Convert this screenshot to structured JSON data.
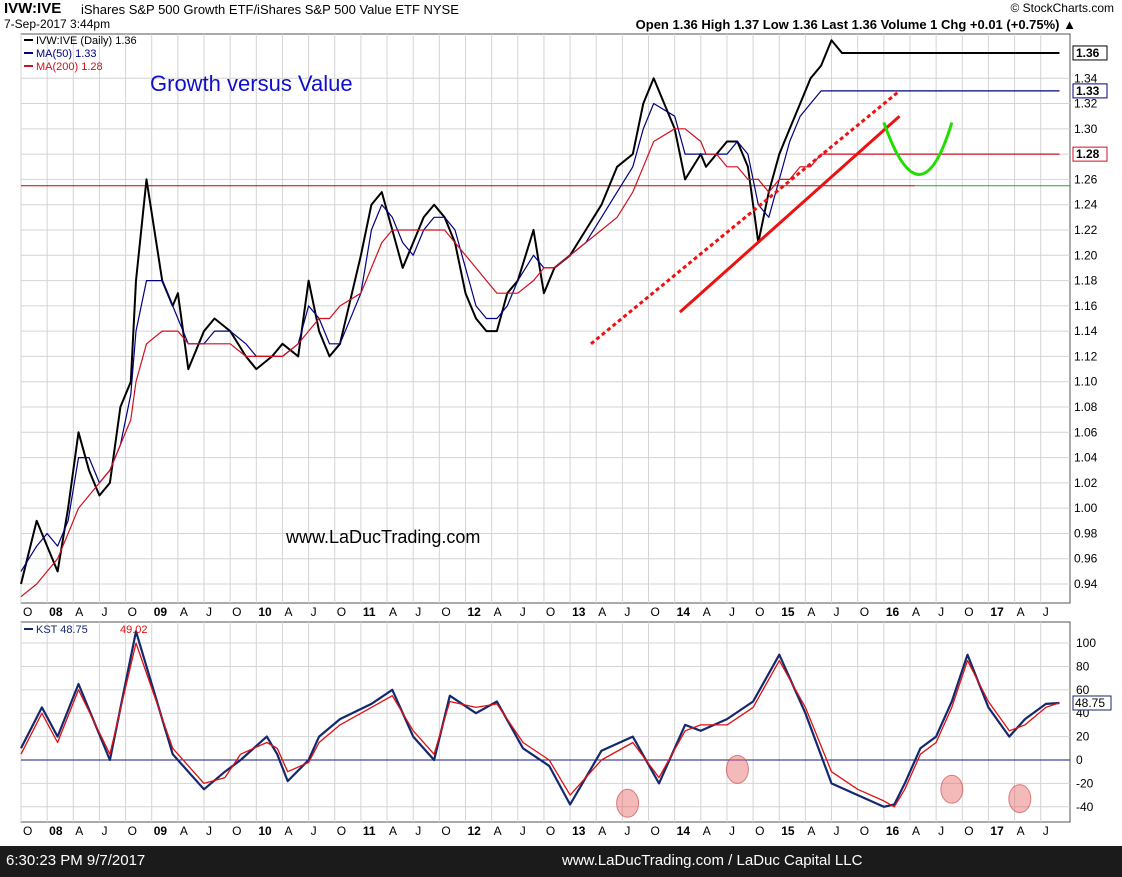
{
  "header": {
    "ticker": "IVW:IVE",
    "name": "iShares S&P 500 Growth ETF/iShares S&P 500 Value ETF NYSE",
    "date": "7-Sep-2017 3:44pm",
    "brand": "© StockCharts.com",
    "quote": "Open 1.36 High 1.37 Low 1.36 Last 1.36 Volume 1 Chg +0.01 (+0.75%) ▲"
  },
  "footer": {
    "left": "6:30:23 PM 9/7/2017",
    "center": "www.LaDucTrading.com / LaDuc Capital LLC"
  },
  "colors": {
    "price": "#000000",
    "ma50": "#000080",
    "ma200": "#d01020",
    "kst": "#14286e",
    "signal": "#e01010",
    "trend": "#ee1111",
    "cup": "#22dd00",
    "title": "#1010cc",
    "grid": "#d4d4d4"
  },
  "chart_data": [
    {
      "type": "line",
      "title": "Growth versus Value",
      "watermark": "www.LaDucTrading.com",
      "legend": [
        "IVW:IVE (Daily) 1.36",
        "MA(50) 1.33",
        "MA(200) 1.28"
      ],
      "legend_position": "top-left",
      "grid": true,
      "ylim": [
        0.925,
        1.375
      ],
      "yticks": [
        0.94,
        0.96,
        0.98,
        1.0,
        1.02,
        1.04,
        1.06,
        1.08,
        1.1,
        1.12,
        1.14,
        1.16,
        1.18,
        1.2,
        1.22,
        1.24,
        1.26,
        1.28,
        1.3,
        1.32,
        1.34
      ],
      "xticks": [
        "O",
        "08",
        "A",
        "J",
        "O",
        "09",
        "A",
        "J",
        "O",
        "10",
        "A",
        "J",
        "O",
        "11",
        "A",
        "J",
        "O",
        "12",
        "A",
        "J",
        "O",
        "13",
        "A",
        "J",
        "O",
        "14",
        "A",
        "J",
        "O",
        "15",
        "A",
        "J",
        "O",
        "16",
        "A",
        "J",
        "O",
        "17",
        "A",
        "J"
      ],
      "last_value_labels": [
        {
          "text": "1.36",
          "value": 1.36
        },
        {
          "text": "1.33",
          "value": 1.33
        },
        {
          "text": "1.28",
          "value": 1.28
        }
      ],
      "x": [
        2007.75,
        2007.9,
        2008.0,
        2008.1,
        2008.2,
        2008.3,
        2008.4,
        2008.5,
        2008.6,
        2008.7,
        2008.8,
        2008.85,
        2008.95,
        2009.1,
        2009.2,
        2009.25,
        2009.35,
        2009.5,
        2009.6,
        2009.75,
        2009.9,
        2010.0,
        2010.15,
        2010.25,
        2010.4,
        2010.5,
        2010.6,
        2010.7,
        2010.8,
        2011.0,
        2011.1,
        2011.2,
        2011.3,
        2011.4,
        2011.5,
        2011.6,
        2011.7,
        2011.8,
        2011.9,
        2012.0,
        2012.1,
        2012.2,
        2012.3,
        2012.4,
        2012.5,
        2012.65,
        2012.75,
        2012.85,
        2013.0,
        2013.15,
        2013.3,
        2013.45,
        2013.6,
        2013.7,
        2013.8,
        2014.0,
        2014.1,
        2014.25,
        2014.3,
        2014.4,
        2014.5,
        2014.6,
        2014.7,
        2014.8,
        2014.9,
        2015.0,
        2015.1,
        2015.2,
        2015.3,
        2015.4,
        2015.5,
        2015.6,
        2015.7,
        2015.8,
        2015.9,
        2016.0,
        2016.05,
        2016.15,
        2016.25,
        2016.35,
        2016.45,
        2016.55,
        2016.65,
        2016.75,
        2016.8,
        2016.85,
        2016.92,
        2017.0,
        2017.1,
        2017.2,
        2017.3,
        2017.4,
        2017.5,
        2017.6,
        2017.68
      ],
      "series": [
        {
          "name": "IVW:IVE (Daily) 1.36",
          "values": [
            0.94,
            0.99,
            0.97,
            0.95,
            1.0,
            1.06,
            1.03,
            1.01,
            1.02,
            1.08,
            1.1,
            1.18,
            1.26,
            1.18,
            1.16,
            1.17,
            1.11,
            1.14,
            1.15,
            1.14,
            1.12,
            1.11,
            1.12,
            1.13,
            1.12,
            1.18,
            1.14,
            1.12,
            1.13,
            1.2,
            1.24,
            1.25,
            1.22,
            1.19,
            1.21,
            1.23,
            1.24,
            1.23,
            1.21,
            1.17,
            1.15,
            1.14,
            1.14,
            1.17,
            1.18,
            1.22,
            1.17,
            1.19,
            1.2,
            1.22,
            1.24,
            1.27,
            1.28,
            1.32,
            1.34,
            1.3,
            1.26,
            1.28,
            1.27,
            1.28,
            1.29,
            1.29,
            1.27,
            1.21,
            1.25,
            1.28,
            1.3,
            1.32,
            1.34,
            1.35,
            1.37,
            1.36,
            1.36,
            1.36,
            1.36,
            1.36,
            1.36,
            1.36,
            1.36,
            1.36,
            1.36,
            1.36,
            1.36,
            1.36,
            1.36,
            1.36,
            1.36,
            1.36,
            1.36,
            1.36,
            1.36,
            1.36,
            1.36,
            1.36,
            1.36
          ]
        },
        {
          "name": "MA(50) 1.33",
          "values": [
            0.95,
            0.97,
            0.98,
            0.97,
            0.99,
            1.04,
            1.04,
            1.02,
            1.03,
            1.05,
            1.09,
            1.14,
            1.18,
            1.18,
            1.16,
            1.15,
            1.13,
            1.13,
            1.14,
            1.14,
            1.13,
            1.12,
            1.12,
            1.12,
            1.13,
            1.16,
            1.15,
            1.13,
            1.13,
            1.17,
            1.22,
            1.24,
            1.23,
            1.21,
            1.2,
            1.22,
            1.23,
            1.23,
            1.22,
            1.19,
            1.16,
            1.15,
            1.15,
            1.16,
            1.18,
            1.2,
            1.19,
            1.19,
            1.2,
            1.21,
            1.23,
            1.25,
            1.27,
            1.3,
            1.32,
            1.31,
            1.28,
            1.28,
            1.28,
            1.28,
            1.28,
            1.29,
            1.28,
            1.24,
            1.23,
            1.26,
            1.29,
            1.31,
            1.32,
            1.33,
            1.33,
            1.33,
            1.33,
            1.33,
            1.33,
            1.33,
            1.33,
            1.33,
            1.33,
            1.33,
            1.33,
            1.33,
            1.33,
            1.33,
            1.33,
            1.33,
            1.33,
            1.33,
            1.33,
            1.33,
            1.33,
            1.33,
            1.33,
            1.33,
            1.33
          ]
        },
        {
          "name": "MA(200) 1.28",
          "values": [
            0.93,
            0.94,
            0.95,
            0.96,
            0.98,
            1.0,
            1.01,
            1.02,
            1.03,
            1.05,
            1.07,
            1.1,
            1.13,
            1.14,
            1.14,
            1.14,
            1.13,
            1.13,
            1.13,
            1.13,
            1.12,
            1.12,
            1.12,
            1.12,
            1.13,
            1.14,
            1.15,
            1.15,
            1.16,
            1.17,
            1.19,
            1.21,
            1.22,
            1.22,
            1.22,
            1.22,
            1.22,
            1.22,
            1.21,
            1.2,
            1.19,
            1.18,
            1.17,
            1.17,
            1.17,
            1.18,
            1.19,
            1.19,
            1.2,
            1.21,
            1.22,
            1.23,
            1.25,
            1.27,
            1.29,
            1.3,
            1.3,
            1.29,
            1.28,
            1.28,
            1.27,
            1.27,
            1.26,
            1.26,
            1.25,
            1.26,
            1.26,
            1.27,
            1.27,
            1.28,
            1.28,
            1.28,
            1.28,
            1.28,
            1.28,
            1.28,
            1.28,
            1.28,
            1.28,
            1.28,
            1.28,
            1.28,
            1.28,
            1.28,
            1.28,
            1.28,
            1.28,
            1.28,
            1.28,
            1.28,
            1.28,
            1.28,
            1.28,
            1.28,
            1.28
          ]
        }
      ],
      "annotations": {
        "horizontal_line": 1.255,
        "trendlines": [
          {
            "style": "dashed",
            "points": [
              [
                2013.2,
                1.13
              ],
              [
                2016.15,
                1.33
              ]
            ]
          },
          {
            "style": "solid",
            "points": [
              [
                2014.05,
                1.155
              ],
              [
                2016.15,
                1.31
              ]
            ]
          }
        ],
        "cup": {
          "x": [
            2016.0,
            2016.35,
            2016.65
          ],
          "y": [
            1.305,
            1.245,
            1.305
          ]
        }
      }
    },
    {
      "type": "line",
      "legend": [
        "KST 48.75",
        "49.02"
      ],
      "legend_position": "top-left",
      "grid": true,
      "ylim": [
        -53,
        118
      ],
      "yticks": [
        -40,
        -20,
        0,
        20,
        40,
        60,
        80,
        100
      ],
      "last_value_label": {
        "text": "48.75",
        "value": 48.75
      },
      "xticks": [
        "O",
        "08",
        "A",
        "J",
        "O",
        "09",
        "A",
        "J",
        "O",
        "10",
        "A",
        "J",
        "O",
        "11",
        "A",
        "J",
        "O",
        "12",
        "A",
        "J",
        "O",
        "13",
        "A",
        "J",
        "O",
        "14",
        "A",
        "J",
        "O",
        "15",
        "A",
        "J",
        "O",
        "16",
        "A",
        "J",
        "O",
        "17",
        "A",
        "J"
      ],
      "x": [
        2007.75,
        2007.95,
        2008.1,
        2008.3,
        2008.6,
        2008.85,
        2009.2,
        2009.5,
        2009.7,
        2009.85,
        2010.1,
        2010.2,
        2010.3,
        2010.5,
        2010.6,
        2010.8,
        2011.1,
        2011.3,
        2011.5,
        2011.7,
        2011.85,
        2012.1,
        2012.3,
        2012.55,
        2012.8,
        2013.0,
        2013.3,
        2013.6,
        2013.85,
        2014.1,
        2014.25,
        2014.5,
        2014.75,
        2015.0,
        2015.25,
        2015.5,
        2015.75,
        2016.0,
        2016.1,
        2016.2,
        2016.25,
        2016.35,
        2016.5,
        2016.65,
        2016.8,
        2017.0,
        2017.2,
        2017.35,
        2017.55,
        2017.68
      ],
      "series": [
        {
          "name": "KST",
          "values": [
            10,
            45,
            20,
            65,
            0,
            110,
            5,
            -25,
            -10,
            0,
            20,
            5,
            -18,
            0,
            20,
            35,
            48,
            60,
            20,
            0,
            55,
            40,
            50,
            10,
            -5,
            -38,
            8,
            20,
            -20,
            30,
            25,
            35,
            50,
            90,
            40,
            -20,
            -30,
            -40,
            -38,
            -20,
            -10,
            10,
            20,
            50,
            90,
            45,
            20,
            35,
            48,
            48.75
          ]
        },
        {
          "name": "Signal",
          "values": [
            5,
            40,
            15,
            60,
            5,
            100,
            10,
            -20,
            -15,
            5,
            15,
            10,
            -10,
            -2,
            15,
            30,
            45,
            55,
            25,
            5,
            50,
            45,
            48,
            15,
            0,
            -30,
            0,
            15,
            -15,
            25,
            30,
            30,
            45,
            85,
            45,
            -10,
            -25,
            -35,
            -40,
            -25,
            -15,
            5,
            15,
            45,
            85,
            50,
            25,
            30,
            45,
            49.02
          ]
        }
      ],
      "highlight_ovals": [
        {
          "x": 2013.55,
          "y": -37
        },
        {
          "x": 2014.6,
          "y": -8
        },
        {
          "x": 2016.65,
          "y": -25
        },
        {
          "x": 2017.3,
          "y": -33
        }
      ]
    }
  ]
}
